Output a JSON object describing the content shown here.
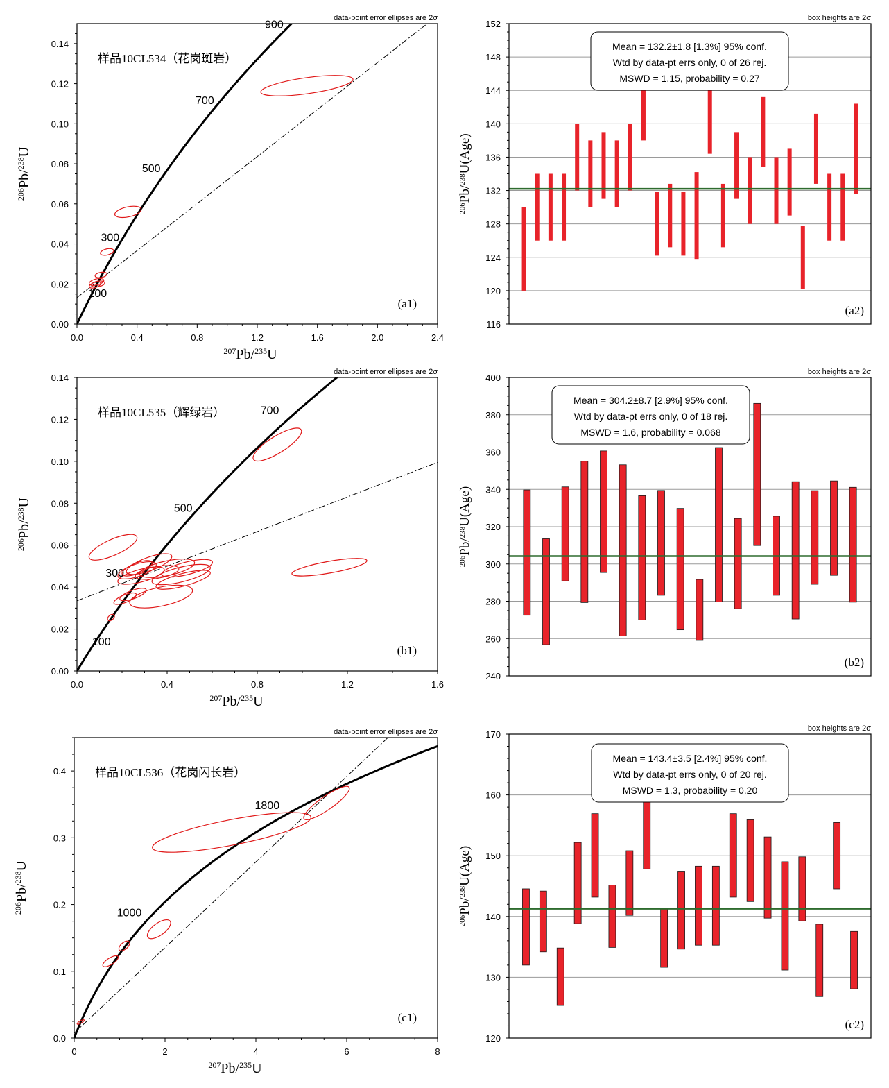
{
  "colors": {
    "ellipse": "#e01818",
    "bar_fill": "#e8232a",
    "mean_line": "#2e6b2e",
    "grid": "#9a9a9a",
    "curve": "#000000"
  },
  "labels": {
    "concordia_x": [
      "207",
      "Pb/",
      "235",
      "U"
    ],
    "concordia_y": [
      "206",
      "Pb/",
      "238",
      "U"
    ],
    "age_y": [
      "206",
      "Pb/",
      "238",
      "U(Age)"
    ],
    "ellipse_note": "data-point error ellipses are 2σ",
    "box_note": "box heights are 2σ"
  },
  "chart_data": [
    {
      "id": "a1",
      "type": "scatter",
      "kind": "concordia",
      "panel_label": "(a1)",
      "sample": "样品10CL534（花岗斑岩）",
      "xlim": [
        0,
        2.4
      ],
      "ylim": [
        0,
        0.15
      ],
      "xticks": [
        "0.0",
        "0.4",
        "0.8",
        "1.2",
        "1.6",
        "2.0",
        "2.4"
      ],
      "yticks": [
        "0.00",
        "0.02",
        "0.04",
        "0.06",
        "0.08",
        "0.10",
        "0.12",
        "0.14"
      ],
      "concordia": {
        "t_max": 1100
      },
      "age_labels": [
        {
          "text": "100",
          "age": 100,
          "dx": -6,
          "dy": 6
        },
        {
          "text": "300",
          "age": 300,
          "dx": -40,
          "dy": 18
        },
        {
          "text": "500",
          "age": 500,
          "dx": -44,
          "dy": 14
        },
        {
          "text": "700",
          "age": 700,
          "dx": -44,
          "dy": 14
        },
        {
          "text": "900",
          "age": 900,
          "dx": -38,
          "dy": 6
        }
      ],
      "discordia": [
        [
          0,
          0.0132
        ],
        [
          2.4,
          0.154
        ]
      ],
      "ellipses": [
        {
          "x": 1.53,
          "y": 0.119,
          "rx": 0.31,
          "ry": 0.004,
          "angle": 8
        },
        {
          "x": 0.34,
          "y": 0.056,
          "rx": 0.09,
          "ry": 0.0025,
          "angle": 12
        },
        {
          "x": 0.2,
          "y": 0.036,
          "rx": 0.045,
          "ry": 0.0015,
          "angle": 14
        },
        {
          "x": 0.16,
          "y": 0.0245,
          "rx": 0.04,
          "ry": 0.0013,
          "angle": 10
        },
        {
          "x": 0.13,
          "y": 0.021,
          "rx": 0.05,
          "ry": 0.0015,
          "angle": 14
        },
        {
          "x": 0.14,
          "y": 0.02,
          "rx": 0.045,
          "ry": 0.0014,
          "angle": 10
        },
        {
          "x": 0.12,
          "y": 0.0195,
          "rx": 0.04,
          "ry": 0.0013,
          "angle": 18
        }
      ]
    },
    {
      "id": "a2",
      "type": "bar",
      "kind": "weighted-mean",
      "panel_label": "(a2)",
      "stats": [
        "Mean = 132.2±1.8  [1.3%]  95% conf.",
        "Wtd by data-pt errs only, 0 of 26 rej.",
        "MSWD = 1.15, probability = 0.27"
      ],
      "ylim": [
        116,
        152
      ],
      "yticks": [
        "116",
        "120",
        "124",
        "128",
        "132",
        "136",
        "140",
        "144",
        "148",
        "152"
      ],
      "mean": 132.2,
      "bars": [
        [
          120,
          130
        ],
        [
          126,
          134
        ],
        [
          126,
          134
        ],
        [
          126,
          134
        ],
        [
          132,
          140
        ],
        [
          130,
          138
        ],
        [
          131,
          139
        ],
        [
          130,
          138
        ],
        [
          132,
          140
        ],
        [
          138,
          146
        ],
        [
          124.2,
          131.8
        ],
        [
          125.2,
          132.8
        ],
        [
          124.2,
          131.8
        ],
        [
          123.8,
          134.2
        ],
        [
          136.4,
          146
        ],
        [
          125.2,
          132.8
        ],
        [
          131,
          139
        ],
        [
          128,
          136
        ],
        [
          134.8,
          143.2
        ],
        [
          128,
          136
        ],
        [
          129,
          137
        ],
        [
          120.2,
          127.8
        ],
        [
          132.8,
          141.2
        ],
        [
          126,
          134
        ],
        [
          126,
          134
        ],
        [
          131.6,
          142.4
        ]
      ]
    },
    {
      "id": "b1",
      "type": "scatter",
      "kind": "concordia",
      "panel_label": "(b1)",
      "sample": "样品10CL535（辉绿岩）",
      "xlim": [
        0,
        1.8
      ],
      "ylim": [
        0,
        0.14
      ],
      "xticks": [
        "0.0",
        "0.4",
        "0.8",
        "1.2",
        "1.6"
      ],
      "yticks": [
        "0.00",
        "0.02",
        "0.04",
        "0.06",
        "0.08",
        "0.10",
        "0.12",
        "0.14"
      ],
      "concordia": {
        "t_max": 900
      },
      "age_labels": [
        {
          "text": "100",
          "age": 100,
          "dx": -8,
          "dy": 10
        },
        {
          "text": "300",
          "age": 300,
          "dx": -58,
          "dy": 8
        },
        {
          "text": "500",
          "age": 500,
          "dx": -44,
          "dy": 14
        },
        {
          "text": "700",
          "age": 700,
          "dx": -22,
          "dy": -24
        }
      ],
      "discordia": [
        [
          0,
          0.0335
        ],
        [
          1.8,
          0.0995
        ]
      ],
      "ellipses": [
        {
          "x": 1.0,
          "y": 0.108,
          "rx": 0.14,
          "ry": 0.004,
          "angle": 32
        },
        {
          "x": 1.26,
          "y": 0.0495,
          "rx": 0.19,
          "ry": 0.0028,
          "angle": 10
        },
        {
          "x": 0.18,
          "y": 0.059,
          "rx": 0.13,
          "ry": 0.0038,
          "angle": 24
        },
        {
          "x": 0.42,
          "y": 0.0355,
          "rx": 0.16,
          "ry": 0.0045,
          "angle": 12
        },
        {
          "x": 0.36,
          "y": 0.051,
          "rx": 0.12,
          "ry": 0.0032,
          "angle": 20
        },
        {
          "x": 0.3,
          "y": 0.048,
          "rx": 0.1,
          "ry": 0.003,
          "angle": 18
        },
        {
          "x": 0.32,
          "y": 0.0455,
          "rx": 0.12,
          "ry": 0.003,
          "angle": 15
        },
        {
          "x": 0.4,
          "y": 0.047,
          "rx": 0.11,
          "ry": 0.0028,
          "angle": 10
        },
        {
          "x": 0.45,
          "y": 0.049,
          "rx": 0.14,
          "ry": 0.0035,
          "angle": 12
        },
        {
          "x": 0.52,
          "y": 0.046,
          "rx": 0.15,
          "ry": 0.0035,
          "angle": 14
        },
        {
          "x": 0.53,
          "y": 0.0435,
          "rx": 0.14,
          "ry": 0.003,
          "angle": 15
        },
        {
          "x": 0.55,
          "y": 0.049,
          "rx": 0.13,
          "ry": 0.003,
          "angle": 14
        },
        {
          "x": 0.28,
          "y": 0.0365,
          "rx": 0.07,
          "ry": 0.002,
          "angle": 20
        },
        {
          "x": 0.24,
          "y": 0.0345,
          "rx": 0.06,
          "ry": 0.0018,
          "angle": 22
        },
        {
          "x": 0.17,
          "y": 0.0255,
          "rx": 0.02,
          "ry": 0.0012,
          "angle": 40
        },
        {
          "x": 0.3,
          "y": 0.049,
          "rx": 0.08,
          "ry": 0.0025,
          "angle": 22
        }
      ]
    },
    {
      "id": "b2",
      "type": "bar",
      "kind": "weighted-mean",
      "panel_label": "(b2)",
      "stats": [
        "Mean = 304.2±8.7  [2.9%]  95% conf.",
        "Wtd by data-pt errs only, 0 of 18 rej.",
        "MSWD = 1.6, probability = 0.068"
      ],
      "ylim": [
        240,
        400
      ],
      "yticks": [
        "240",
        "260",
        "280",
        "300",
        "320",
        "340",
        "360",
        "380",
        "400"
      ],
      "mean": 304.2,
      "bars": [
        [
          272.5,
          339.7
        ],
        [
          256.7,
          313.5
        ],
        [
          290.9,
          341.3
        ],
        [
          279.3,
          355.1
        ],
        [
          295.4,
          360.6
        ],
        [
          261.4,
          353.2
        ],
        [
          270,
          336.6
        ],
        [
          283.2,
          339.4
        ],
        [
          264.7,
          329.8
        ],
        [
          259,
          291.7
        ],
        [
          279.6,
          362.4
        ],
        [
          276,
          324.4
        ],
        [
          309.9,
          386.1
        ],
        [
          283.2,
          325.6
        ],
        [
          270.5,
          344.1
        ],
        [
          289.1,
          339.3
        ],
        [
          293.9,
          344.5
        ],
        [
          279.5,
          341.1
        ]
      ]
    },
    {
      "id": "c1",
      "type": "scatter",
      "kind": "concordia",
      "panel_label": "(c1)",
      "sample": "样品10CL536（花岗闪长岩）",
      "xlim": [
        0,
        9
      ],
      "ylim": [
        0,
        0.45
      ],
      "xticks": [
        "0",
        "2",
        "4",
        "6",
        "8"
      ],
      "yticks": [
        "0.0",
        "0.1",
        "0.2",
        "0.3",
        "0.4"
      ],
      "concordia": {
        "t_max": 2700
      },
      "age_labels": [
        {
          "text": "1000",
          "age": 1000,
          "dx": -36,
          "dy": -14
        },
        {
          "text": "1800",
          "age": 1800,
          "dx": -24,
          "dy": -20
        }
      ],
      "discordia": [
        [
          0,
          0.0075
        ],
        [
          9,
          0.52
        ]
      ],
      "ellipses": [
        {
          "x": 3.9,
          "y": 0.308,
          "rx": 2.0,
          "ry": 0.019,
          "angle": 11
        },
        {
          "x": 6.25,
          "y": 0.352,
          "rx": 0.68,
          "ry": 0.01,
          "angle": 35
        },
        {
          "x": 2.1,
          "y": 0.163,
          "rx": 0.34,
          "ry": 0.009,
          "angle": 36
        },
        {
          "x": 1.24,
          "y": 0.138,
          "rx": 0.16,
          "ry": 0.005,
          "angle": 40
        },
        {
          "x": 0.9,
          "y": 0.115,
          "rx": 0.22,
          "ry": 0.005,
          "angle": 32
        },
        {
          "x": 0.16,
          "y": 0.024,
          "rx": 0.1,
          "ry": 0.0018,
          "angle": 30
        }
      ]
    },
    {
      "id": "c2",
      "type": "bar",
      "kind": "weighted-mean",
      "panel_label": "(c2)",
      "stats": [
        "Mean = 143.4±3.5  [2.4%]  95% conf.",
        "Wtd by data-pt errs only, 0 of 20 rej.",
        "MSWD = 1.3, probability = 0.20"
      ],
      "ylim": [
        120,
        175
      ],
      "yticks": [
        "120",
        "130",
        "140",
        "150",
        "160",
        "170"
      ],
      "mean": 143.4,
      "bars": [
        [
          133.2,
          147
        ],
        [
          135.6,
          146.6
        ],
        [
          125.9,
          136.3
        ],
        [
          140.7,
          155.4
        ],
        [
          145.5,
          160.6
        ],
        [
          136.4,
          147.7
        ],
        [
          142.2,
          153.9
        ],
        [
          150.6,
          164
        ],
        [
          132.8,
          143.5
        ],
        [
          136.1,
          150.2
        ],
        [
          136.8,
          151.1
        ],
        [
          136.8,
          151.1
        ],
        [
          145.5,
          160.6
        ],
        [
          144.7,
          159.5
        ],
        [
          141.7,
          156.4
        ],
        [
          132.3,
          151.9
        ],
        [
          141.2,
          152.8
        ],
        [
          127.5,
          140.6
        ],
        [
          147,
          159
        ],
        [
          128.9,
          139.3
        ]
      ]
    }
  ]
}
